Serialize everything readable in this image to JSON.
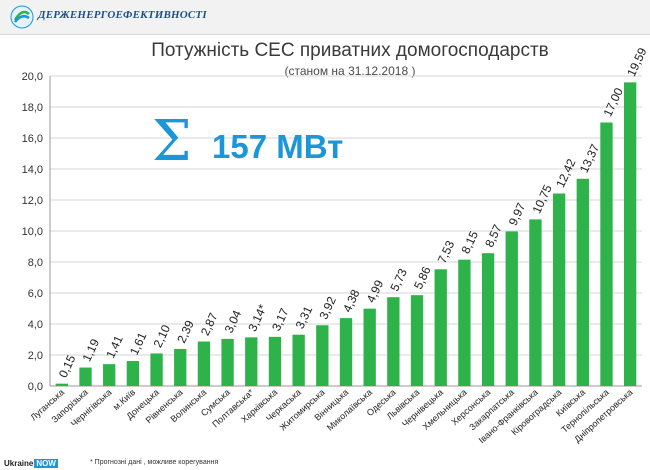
{
  "header": {
    "org_name": "ДЕРЖЕНЕРГОЕФЕКТИВНОСТІ",
    "logo": "agency-logo-icon"
  },
  "summary": {
    "symbol": "Σ",
    "total": "157 МВт"
  },
  "footer": {
    "brand": "Ukraine",
    "brand_badge": "NOW",
    "note": "* Прогнозні дані , можливе корегування"
  },
  "colors": {
    "bar": "#2db34a",
    "accent": "#1b96d8",
    "grid": "#d4d4d4"
  },
  "chart_data": {
    "type": "bar",
    "title": "Потужність СЕС приватних домогосподарств",
    "subtitle": "(станом на 31.12.2018 )",
    "xlabel": "",
    "ylabel": "",
    "ylim": [
      0,
      20
    ],
    "yticks": [
      "0,0",
      "2,0",
      "4,0",
      "6,0",
      "8,0",
      "10,0",
      "12,0",
      "14,0",
      "16,0",
      "18,0",
      "20,0"
    ],
    "grid": true,
    "categories": [
      "Луганська",
      "Запорізька",
      "Чернігівська",
      "м.Київ",
      "Донецька",
      "Рівненська",
      "Волинська",
      "Сумська",
      "Полтавська*",
      "Харківська",
      "Черкаська",
      "Житомирська",
      "Вінницька",
      "Миколаївська",
      "Одеська",
      "Львівська",
      "Чернівецька",
      "Хмельницька",
      "Херсонська",
      "Закарпатська",
      "Івано-Франківська",
      "Кіровоградська",
      "Київська",
      "Тернопільська",
      "Дніпропетровська"
    ],
    "values": [
      0.15,
      1.19,
      1.41,
      1.61,
      2.1,
      2.39,
      2.87,
      3.04,
      3.14,
      3.17,
      3.31,
      3.92,
      4.38,
      4.99,
      5.73,
      5.86,
      7.53,
      8.15,
      8.57,
      9.97,
      10.75,
      12.42,
      13.37,
      17.0,
      19.59
    ],
    "labels": [
      "0,15",
      "1,19",
      "1,41",
      "1,61",
      "2,10",
      "2,39",
      "2,87",
      "3,04",
      "3,14*",
      "3,17",
      "3,31",
      "3,92",
      "4,38",
      "4,99",
      "5,73",
      "5,86",
      "7,53",
      "8,15",
      "8,57",
      "9,97",
      "10,75",
      "12,42",
      "13,37",
      "17,00",
      "19,59"
    ]
  }
}
